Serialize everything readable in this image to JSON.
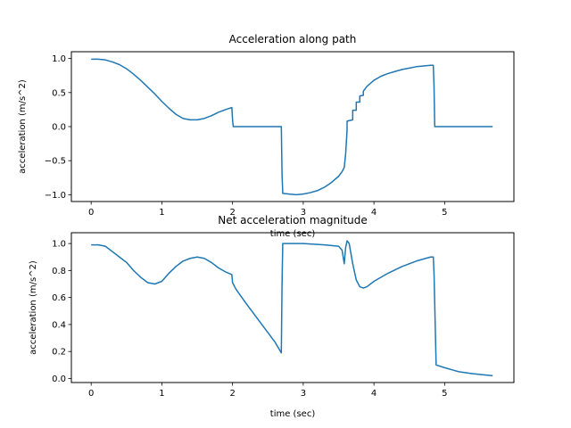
{
  "chart_data": [
    {
      "type": "line",
      "title": "Acceleration along path",
      "xlabel": "time (sec)",
      "ylabel": "acceleration (m/s^2)",
      "xlim": [
        -0.28,
        5.98
      ],
      "ylim": [
        -1.1,
        1.1
      ],
      "xticks": [
        0,
        1,
        2,
        3,
        4,
        5
      ],
      "yticks": [
        -1.0,
        -0.5,
        0.0,
        0.5,
        1.0
      ],
      "xtick_labels": [
        "0",
        "1",
        "2",
        "3",
        "4",
        "5"
      ],
      "ytick_labels": [
        "−1.0",
        "−0.5",
        "0.0",
        "0.5",
        "1.0"
      ],
      "grid": false,
      "color": "#1f77b4",
      "series": [
        {
          "x": [
            0,
            0.1,
            0.2,
            0.3,
            0.4,
            0.5,
            0.6,
            0.7,
            0.8,
            0.9,
            1.0,
            1.1,
            1.2,
            1.3,
            1.4,
            1.5,
            1.6,
            1.7,
            1.8,
            1.9,
            1.99,
            2.0,
            2.01,
            2.3,
            2.6,
            2.69,
            2.7,
            2.71,
            2.8,
            2.9,
            3.0,
            3.1,
            3.2,
            3.3,
            3.4,
            3.5,
            3.55,
            3.58,
            3.6,
            3.62,
            3.62,
            3.7,
            3.7,
            3.75,
            3.75,
            3.8,
            3.8,
            3.85,
            3.85,
            3.9,
            4.0,
            4.1,
            4.2,
            4.3,
            4.4,
            4.5,
            4.6,
            4.7,
            4.8,
            4.84,
            4.85,
            4.86,
            5.0,
            5.3,
            5.68
          ],
          "y": [
            0.99,
            0.99,
            0.98,
            0.95,
            0.91,
            0.85,
            0.77,
            0.68,
            0.58,
            0.48,
            0.37,
            0.27,
            0.18,
            0.12,
            0.1,
            0.1,
            0.12,
            0.16,
            0.21,
            0.25,
            0.28,
            0.1,
            0.0,
            0.0,
            0.0,
            0.0,
            -0.7,
            -0.98,
            -0.99,
            -1.0,
            -0.99,
            -0.97,
            -0.94,
            -0.89,
            -0.82,
            -0.73,
            -0.66,
            -0.6,
            -0.4,
            -0.05,
            0.08,
            0.1,
            0.24,
            0.24,
            0.36,
            0.36,
            0.45,
            0.46,
            0.52,
            0.59,
            0.68,
            0.74,
            0.78,
            0.81,
            0.84,
            0.86,
            0.88,
            0.89,
            0.9,
            0.9,
            0.6,
            0.0,
            0.0,
            0.0,
            0.0
          ]
        }
      ]
    },
    {
      "type": "line",
      "title": "Net acceleration magnitude",
      "xlabel": "time (sec)",
      "ylabel": "acceleration (m/s^2)",
      "xlim": [
        -0.28,
        5.98
      ],
      "ylim": [
        -0.03,
        1.08
      ],
      "xticks": [
        0,
        1,
        2,
        3,
        4,
        5
      ],
      "yticks": [
        0.0,
        0.2,
        0.4,
        0.6,
        0.8,
        1.0
      ],
      "xtick_labels": [
        "0",
        "1",
        "2",
        "3",
        "4",
        "5"
      ],
      "ytick_labels": [
        "0.0",
        "0.2",
        "0.4",
        "0.6",
        "0.8",
        "1.0"
      ],
      "grid": false,
      "color": "#1f77b4",
      "series": [
        {
          "x": [
            0,
            0.1,
            0.2,
            0.3,
            0.4,
            0.5,
            0.6,
            0.7,
            0.8,
            0.9,
            1.0,
            1.1,
            1.2,
            1.3,
            1.4,
            1.5,
            1.6,
            1.7,
            1.8,
            1.9,
            1.99,
            2.0,
            2.05,
            2.2,
            2.4,
            2.6,
            2.69,
            2.7,
            2.71,
            3.0,
            3.3,
            3.5,
            3.55,
            3.58,
            3.6,
            3.62,
            3.65,
            3.7,
            3.75,
            3.8,
            3.85,
            3.9,
            4.0,
            4.2,
            4.4,
            4.6,
            4.8,
            4.84,
            4.85,
            4.88,
            5.0,
            5.2,
            5.4,
            5.68
          ],
          "y": [
            0.99,
            0.99,
            0.98,
            0.94,
            0.9,
            0.86,
            0.8,
            0.75,
            0.71,
            0.7,
            0.72,
            0.78,
            0.83,
            0.87,
            0.89,
            0.9,
            0.89,
            0.86,
            0.82,
            0.79,
            0.77,
            0.71,
            0.66,
            0.55,
            0.41,
            0.27,
            0.19,
            0.7,
            1.0,
            1.0,
            0.99,
            0.98,
            0.95,
            0.85,
            0.97,
            1.02,
            1.0,
            0.85,
            0.73,
            0.68,
            0.67,
            0.68,
            0.72,
            0.78,
            0.83,
            0.87,
            0.9,
            0.9,
            0.78,
            0.1,
            0.08,
            0.05,
            0.035,
            0.02
          ]
        }
      ]
    }
  ]
}
